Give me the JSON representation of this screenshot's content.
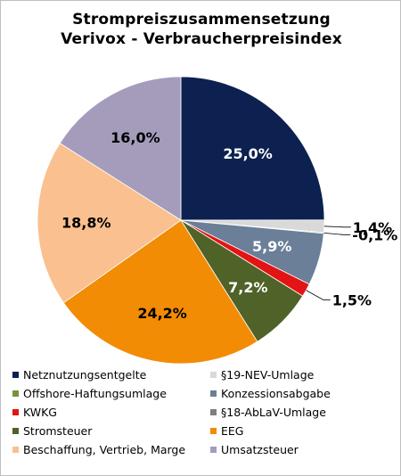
{
  "chart_data": {
    "type": "pie",
    "title": "Strompreiszusammensetzung",
    "subtitle": "Verivox - Verbraucherpreisindex",
    "series": [
      {
        "name": "Netznutzungsentgelte",
        "value": 25.0,
        "label": "25,0%",
        "color": "#0c2150",
        "label_color": "#ffffff"
      },
      {
        "name": "§19-NEV-Umlage",
        "value": 1.4,
        "label": "1,4%",
        "color": "#d9d9d9",
        "label_color": "#000000"
      },
      {
        "name": "Offshore-Haftungsumlage",
        "value": -0.1,
        "label": "-0,1%",
        "color": "#77933c",
        "label_color": "#000000"
      },
      {
        "name": "Konzessionsabgabe",
        "value": 5.9,
        "label": "5,9%",
        "color": "#6b7f99",
        "label_color": "#ffffff"
      },
      {
        "name": "KWKG",
        "value": 1.5,
        "label": "1,5%",
        "color": "#e31414",
        "label_color": "#000000"
      },
      {
        "name": "§18-AbLaV-Umlage",
        "value": 0.0,
        "label": "",
        "color": "#7f7f7f",
        "label_color": "#000000"
      },
      {
        "name": "Stromsteuer",
        "value": 7.2,
        "label": "7,2%",
        "color": "#4f6228",
        "label_color": "#ffffff"
      },
      {
        "name": "EEG",
        "value": 24.2,
        "label": "24,2%",
        "color": "#f28c05",
        "label_color": "#000000"
      },
      {
        "name": "Beschaffung, Vertrieb, Marge",
        "value": 18.8,
        "label": "18,8%",
        "color": "#fac08f",
        "label_color": "#000000"
      },
      {
        "name": "Umsatzsteuer",
        "value": 16.0,
        "label": "16,0%",
        "color": "#a59cbc",
        "label_color": "#000000"
      }
    ],
    "legend_position": "bottom"
  }
}
